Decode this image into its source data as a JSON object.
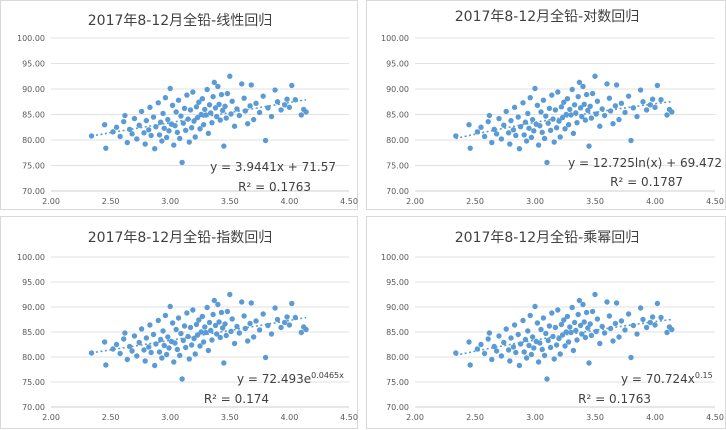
{
  "chart_data": [
    {
      "type": "scatter",
      "title": "2017年8-12月全铅-线性回归",
      "trendline": "linear",
      "equation": "y = 3.9441x + 71.57",
      "r_squared": "R² = 0.1763",
      "coef": {
        "a": 3.9441,
        "b": 71.57
      },
      "xlim": [
        2.0,
        4.5
      ],
      "ylim": [
        70.0,
        100.0
      ],
      "xticks": [
        "2.00",
        "2.50",
        "3.00",
        "3.50",
        "4.00",
        "4.50"
      ],
      "yticks": [
        "70.00",
        "75.00",
        "80.00",
        "85.00",
        "90.00",
        "95.00",
        "100.00"
      ],
      "grid": true
    },
    {
      "type": "scatter",
      "title": "2017年8-12月全铅-对数回归",
      "trendline": "log",
      "equation": "y = 12.725ln(x) + 69.472",
      "r_squared": "R² = 0.1787",
      "coef": {
        "a": 12.725,
        "b": 69.472
      },
      "xlim": [
        2.0,
        4.5
      ],
      "ylim": [
        70.0,
        100.0
      ],
      "xticks": [
        "2.00",
        "2.50",
        "3.00",
        "3.50",
        "4.00",
        "4.50"
      ],
      "yticks": [
        "70.00",
        "75.00",
        "80.00",
        "85.00",
        "90.00",
        "95.00",
        "100.00"
      ],
      "grid": true
    },
    {
      "type": "scatter",
      "title": "2017年8-12月全铅-指数回归",
      "trendline": "exp",
      "equation_base": "y = 72.493e",
      "equation_sup": "0.0465x",
      "r_squared": "R² = 0.174",
      "coef": {
        "a": 72.493,
        "b": 0.0465
      },
      "xlim": [
        2.0,
        4.5
      ],
      "ylim": [
        70.0,
        100.0
      ],
      "xticks": [
        "2.00",
        "2.50",
        "3.00",
        "3.50",
        "4.00",
        "4.50"
      ],
      "yticks": [
        "70.00",
        "75.00",
        "80.00",
        "85.00",
        "90.00",
        "95.00",
        "100.00"
      ],
      "grid": true
    },
    {
      "type": "scatter",
      "title": "2017年8-12月全铅-乘幂回归",
      "trendline": "power",
      "equation_base": "y = 70.724x",
      "equation_sup": "0.15",
      "r_squared": "R² = 0.1763",
      "coef": {
        "a": 70.724,
        "b": 0.15
      },
      "xlim": [
        2.0,
        4.5
      ],
      "ylim": [
        70.0,
        100.0
      ],
      "xticks": [
        "2.00",
        "2.50",
        "3.00",
        "3.50",
        "4.00",
        "4.50"
      ],
      "yticks": [
        "70.00",
        "75.00",
        "80.00",
        "85.00",
        "90.00",
        "95.00",
        "100.00"
      ],
      "grid": true
    }
  ],
  "points": [
    [
      2.34,
      80.8
    ],
    [
      2.45,
      83.0
    ],
    [
      2.46,
      78.4
    ],
    [
      2.52,
      81.6
    ],
    [
      2.55,
      82.5
    ],
    [
      2.58,
      80.7
    ],
    [
      2.61,
      83.6
    ],
    [
      2.62,
      84.8
    ],
    [
      2.64,
      79.5
    ],
    [
      2.66,
      82.1
    ],
    [
      2.68,
      81.2
    ],
    [
      2.7,
      84.2
    ],
    [
      2.72,
      80.2
    ],
    [
      2.74,
      82.9
    ],
    [
      2.76,
      85.6
    ],
    [
      2.78,
      81.4
    ],
    [
      2.79,
      79.2
    ],
    [
      2.8,
      83.8
    ],
    [
      2.82,
      82.0
    ],
    [
      2.83,
      86.4
    ],
    [
      2.84,
      80.9
    ],
    [
      2.86,
      84.5
    ],
    [
      2.87,
      78.3
    ],
    [
      2.88,
      82.6
    ],
    [
      2.9,
      87.3
    ],
    [
      2.91,
      81.0
    ],
    [
      2.92,
      83.5
    ],
    [
      2.93,
      79.8
    ],
    [
      2.94,
      85.2
    ],
    [
      2.95,
      82.3
    ],
    [
      2.96,
      88.3
    ],
    [
      2.97,
      80.5
    ],
    [
      2.98,
      84.0
    ],
    [
      2.99,
      81.8
    ],
    [
      3.0,
      90.1
    ],
    [
      3.01,
      83.1
    ],
    [
      3.02,
      86.8
    ],
    [
      3.03,
      79.0
    ],
    [
      3.04,
      82.8
    ],
    [
      3.05,
      85.5
    ],
    [
      3.06,
      81.5
    ],
    [
      3.07,
      87.8
    ],
    [
      3.08,
      80.3
    ],
    [
      3.09,
      84.7
    ],
    [
      3.1,
      75.6
    ],
    [
      3.11,
      83.3
    ],
    [
      3.12,
      86.2
    ],
    [
      3.13,
      81.9
    ],
    [
      3.14,
      88.8
    ],
    [
      3.15,
      84.1
    ],
    [
      3.16,
      79.6
    ],
    [
      3.17,
      85.9
    ],
    [
      3.18,
      82.4
    ],
    [
      3.19,
      89.4
    ],
    [
      3.2,
      83.7
    ],
    [
      3.21,
      80.6
    ],
    [
      3.22,
      86.5
    ],
    [
      3.23,
      84.4
    ],
    [
      3.24,
      87.4
    ],
    [
      3.25,
      82.2
    ],
    [
      3.26,
      85.0
    ],
    [
      3.27,
      88.1
    ],
    [
      3.28,
      83.0
    ],
    [
      3.29,
      86.0
    ],
    [
      3.3,
      84.9
    ],
    [
      3.31,
      89.9
    ],
    [
      3.32,
      81.3
    ],
    [
      3.33,
      86.9
    ],
    [
      3.34,
      85.3
    ],
    [
      3.35,
      83.4
    ],
    [
      3.36,
      88.5
    ],
    [
      3.37,
      91.3
    ],
    [
      3.38,
      86.3
    ],
    [
      3.39,
      84.6
    ],
    [
      3.4,
      90.5
    ],
    [
      3.41,
      87.0
    ],
    [
      3.42,
      83.9
    ],
    [
      3.43,
      88.9
    ],
    [
      3.44,
      85.8
    ],
    [
      3.45,
      78.8
    ],
    [
      3.46,
      86.6
    ],
    [
      3.47,
      84.3
    ],
    [
      3.48,
      89.1
    ],
    [
      3.5,
      92.5
    ],
    [
      3.51,
      85.1
    ],
    [
      3.52,
      87.6
    ],
    [
      3.54,
      82.7
    ],
    [
      3.56,
      86.1
    ],
    [
      3.58,
      84.8
    ],
    [
      3.6,
      91.0
    ],
    [
      3.62,
      88.2
    ],
    [
      3.63,
      85.7
    ],
    [
      3.65,
      83.2
    ],
    [
      3.67,
      86.7
    ],
    [
      3.68,
      90.8
    ],
    [
      3.7,
      84.0
    ],
    [
      3.72,
      87.2
    ],
    [
      3.75,
      85.4
    ],
    [
      3.78,
      88.6
    ],
    [
      3.8,
      79.9
    ],
    [
      3.82,
      86.3
    ],
    [
      3.85,
      84.6
    ],
    [
      3.88,
      89.8
    ],
    [
      3.9,
      87.5
    ],
    [
      3.93,
      85.9
    ],
    [
      3.96,
      86.9
    ],
    [
      3.98,
      88.0
    ],
    [
      4.0,
      86.4
    ],
    [
      4.02,
      90.7
    ],
    [
      4.05,
      87.9
    ],
    [
      4.1,
      84.9
    ],
    [
      4.12,
      86.0
    ],
    [
      4.14,
      85.5
    ]
  ]
}
